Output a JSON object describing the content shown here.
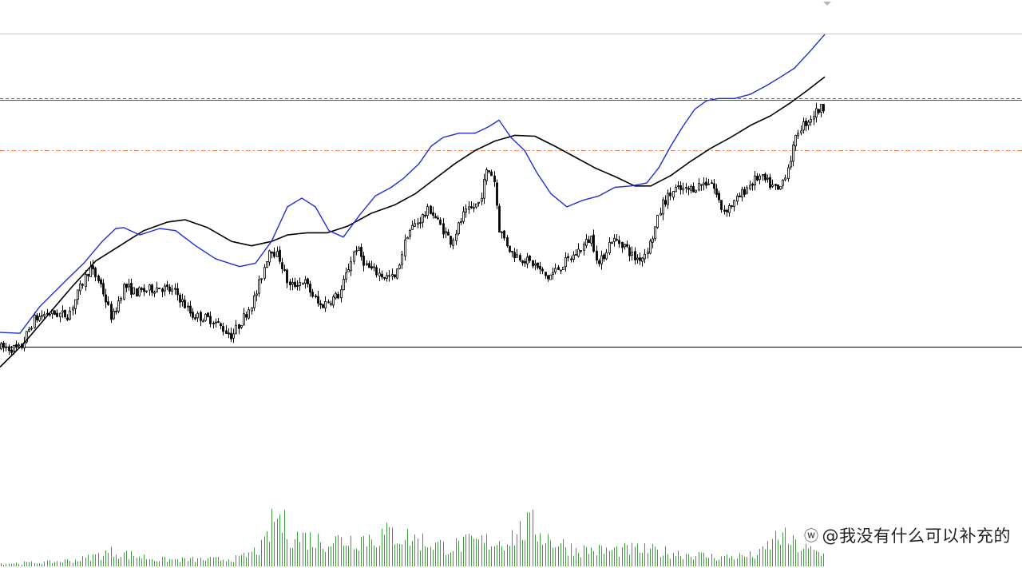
{
  "watermark": {
    "text": "@我没有什么可以补充的",
    "icon": "weibo-logo-icon"
  },
  "colors": {
    "background": "#ffffff",
    "candle": "#000000",
    "ma_fast": "#1f2ed8",
    "ma_slow": "#000000",
    "volume": "#3f9e3f",
    "resistance_line": "#3f7f3f",
    "dashdot_line": "#f08a5a",
    "top_line": "#c8c8c8",
    "support_line": "#000000"
  },
  "chart_data": {
    "type": "candlestick",
    "title": "",
    "xlabel": "",
    "ylabel": "",
    "grid": false,
    "legend": "none",
    "ylim": [
      0,
      1000
    ],
    "volume_ylim": [
      0,
      100
    ],
    "price_path": [
      [
        0,
        235
      ],
      [
        25,
        232
      ],
      [
        42,
        300
      ],
      [
        60,
        315
      ],
      [
        85,
        310
      ],
      [
        112,
        420
      ],
      [
        125,
        385
      ],
      [
        140,
        300
      ],
      [
        155,
        378
      ],
      [
        170,
        362
      ],
      [
        200,
        375
      ],
      [
        220,
        362
      ],
      [
        240,
        310
      ],
      [
        265,
        300
      ],
      [
        290,
        262
      ],
      [
        305,
        305
      ],
      [
        320,
        355
      ],
      [
        338,
        468
      ],
      [
        350,
        440
      ],
      [
        362,
        375
      ],
      [
        380,
        390
      ],
      [
        400,
        330
      ],
      [
        425,
        358
      ],
      [
        445,
        468
      ],
      [
        460,
        420
      ],
      [
        480,
        400
      ],
      [
        495,
        395
      ],
      [
        510,
        500
      ],
      [
        520,
        520
      ],
      [
        538,
        555
      ],
      [
        550,
        520
      ],
      [
        565,
        480
      ],
      [
        580,
        540
      ],
      [
        600,
        570
      ],
      [
        610,
        648
      ],
      [
        618,
        630
      ],
      [
        625,
        510
      ],
      [
        640,
        455
      ],
      [
        655,
        440
      ],
      [
        670,
        425
      ],
      [
        685,
        395
      ],
      [
        700,
        420
      ],
      [
        720,
        450
      ],
      [
        740,
        490
      ],
      [
        750,
        425
      ],
      [
        765,
        485
      ],
      [
        780,
        475
      ],
      [
        795,
        440
      ],
      [
        805,
        445
      ],
      [
        815,
        480
      ],
      [
        830,
        570
      ],
      [
        845,
        600
      ],
      [
        860,
        598
      ],
      [
        875,
        610
      ],
      [
        890,
        620
      ],
      [
        905,
        550
      ],
      [
        920,
        570
      ],
      [
        935,
        605
      ],
      [
        950,
        630
      ],
      [
        965,
        610
      ],
      [
        975,
        595
      ],
      [
        988,
        660
      ],
      [
        1000,
        740
      ],
      [
        1012,
        760
      ],
      [
        1022,
        780
      ],
      [
        1032,
        792
      ]
    ],
    "ma_fast": [
      [
        0,
        270
      ],
      [
        25,
        268
      ],
      [
        50,
        330
      ],
      [
        80,
        385
      ],
      [
        105,
        430
      ],
      [
        128,
        480
      ],
      [
        145,
        510
      ],
      [
        155,
        512
      ],
      [
        175,
        495
      ],
      [
        200,
        510
      ],
      [
        220,
        505
      ],
      [
        245,
        470
      ],
      [
        270,
        440
      ],
      [
        300,
        422
      ],
      [
        320,
        430
      ],
      [
        340,
        480
      ],
      [
        360,
        560
      ],
      [
        378,
        580
      ],
      [
        395,
        560
      ],
      [
        412,
        505
      ],
      [
        430,
        490
      ],
      [
        450,
        540
      ],
      [
        470,
        585
      ],
      [
        490,
        605
      ],
      [
        505,
        625
      ],
      [
        525,
        660
      ],
      [
        540,
        700
      ],
      [
        555,
        720
      ],
      [
        575,
        730
      ],
      [
        595,
        730
      ],
      [
        612,
        745
      ],
      [
        625,
        760
      ],
      [
        640,
        720
      ],
      [
        657,
        690
      ],
      [
        672,
        640
      ],
      [
        690,
        590
      ],
      [
        710,
        560
      ],
      [
        730,
        575
      ],
      [
        750,
        585
      ],
      [
        770,
        605
      ],
      [
        790,
        608
      ],
      [
        810,
        615
      ],
      [
        825,
        650
      ],
      [
        840,
        700
      ],
      [
        855,
        745
      ],
      [
        870,
        785
      ],
      [
        885,
        805
      ],
      [
        900,
        810
      ],
      [
        920,
        810
      ],
      [
        940,
        820
      ],
      [
        960,
        840
      ],
      [
        978,
        860
      ],
      [
        995,
        880
      ],
      [
        1015,
        920
      ],
      [
        1033,
        958
      ]
    ],
    "ma_slow": [
      [
        0,
        190
      ],
      [
        30,
        245
      ],
      [
        60,
        310
      ],
      [
        90,
        375
      ],
      [
        120,
        435
      ],
      [
        150,
        470
      ],
      [
        180,
        505
      ],
      [
        210,
        525
      ],
      [
        232,
        530
      ],
      [
        260,
        512
      ],
      [
        290,
        480
      ],
      [
        315,
        470
      ],
      [
        340,
        480
      ],
      [
        360,
        495
      ],
      [
        385,
        500
      ],
      [
        410,
        500
      ],
      [
        435,
        515
      ],
      [
        465,
        545
      ],
      [
        495,
        565
      ],
      [
        520,
        590
      ],
      [
        545,
        625
      ],
      [
        570,
        660
      ],
      [
        595,
        690
      ],
      [
        620,
        712
      ],
      [
        645,
        725
      ],
      [
        670,
        723
      ],
      [
        695,
        700
      ],
      [
        720,
        675
      ],
      [
        745,
        650
      ],
      [
        770,
        630
      ],
      [
        795,
        608
      ],
      [
        815,
        608
      ],
      [
        840,
        632
      ],
      [
        865,
        665
      ],
      [
        890,
        695
      ],
      [
        915,
        720
      ],
      [
        940,
        748
      ],
      [
        965,
        770
      ],
      [
        990,
        800
      ],
      [
        1012,
        830
      ],
      [
        1033,
        860
      ]
    ],
    "volume_path": [
      [
        0,
        5
      ],
      [
        55,
        7
      ],
      [
        100,
        12
      ],
      [
        140,
        26
      ],
      [
        165,
        20
      ],
      [
        200,
        12
      ],
      [
        260,
        12
      ],
      [
        300,
        14
      ],
      [
        330,
        35
      ],
      [
        345,
        90
      ],
      [
        365,
        55
      ],
      [
        400,
        45
      ],
      [
        440,
        48
      ],
      [
        470,
        52
      ],
      [
        490,
        58
      ],
      [
        520,
        48
      ],
      [
        560,
        34
      ],
      [
        590,
        42
      ],
      [
        630,
        45
      ],
      [
        665,
        72
      ],
      [
        690,
        46
      ],
      [
        720,
        30
      ],
      [
        760,
        28
      ],
      [
        800,
        30
      ],
      [
        860,
        22
      ],
      [
        900,
        16
      ],
      [
        950,
        20
      ],
      [
        975,
        55
      ],
      [
        1000,
        35
      ],
      [
        1032,
        20
      ]
    ],
    "reference_lines": [
      {
        "kind": "top",
        "value": 960,
        "style": "solid"
      },
      {
        "kind": "resistance",
        "value": 808,
        "style": "dashed-double"
      },
      {
        "kind": "dash-dot",
        "value": 690,
        "style": "dash-dot"
      },
      {
        "kind": "support",
        "value": 237,
        "style": "solid"
      }
    ]
  }
}
